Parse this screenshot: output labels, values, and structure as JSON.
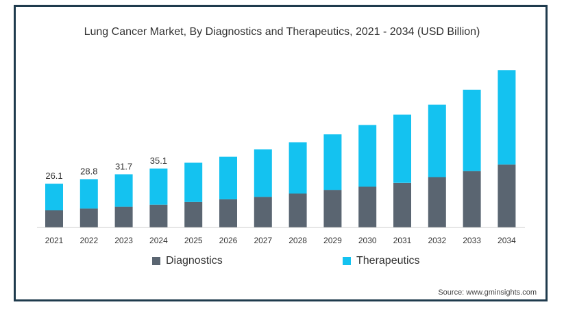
{
  "colors": {
    "diagnostics": "#5a6571",
    "therapeutics": "#14c2f0",
    "axis": "#cccccc",
    "text": "#333333",
    "border": "#1f3b4d"
  },
  "chart_data": {
    "type": "bar",
    "stacked": true,
    "title": "Lung Cancer Market, By Diagnostics and Therapeutics, 2021 - 2034 (USD Billion)",
    "categories": [
      "2021",
      "2022",
      "2023",
      "2024",
      "2025",
      "2026",
      "2027",
      "2028",
      "2029",
      "2030",
      "2031",
      "2032",
      "2033",
      "2034"
    ],
    "series": [
      {
        "name": "Diagnostics",
        "color": "#5a6571",
        "values": [
          10.2,
          11.3,
          12.4,
          13.6,
          15.2,
          16.8,
          18.2,
          20.2,
          22.4,
          24.3,
          26.6,
          30.0,
          33.6,
          37.5
        ]
      },
      {
        "name": "Therapeutics",
        "color": "#14c2f0",
        "values": [
          15.9,
          17.5,
          19.3,
          21.5,
          23.4,
          25.4,
          28.3,
          30.6,
          33.1,
          36.8,
          40.6,
          43.2,
          48.5,
          56.3
        ]
      }
    ],
    "totals_labels": [
      "26.1",
      "28.8",
      "31.7",
      "35.1"
    ],
    "ylim": [
      0,
      98
    ],
    "xlabel": "",
    "ylabel": "",
    "grid": false,
    "legend_position": "bottom"
  },
  "source": "Source: www.gminsights.com"
}
